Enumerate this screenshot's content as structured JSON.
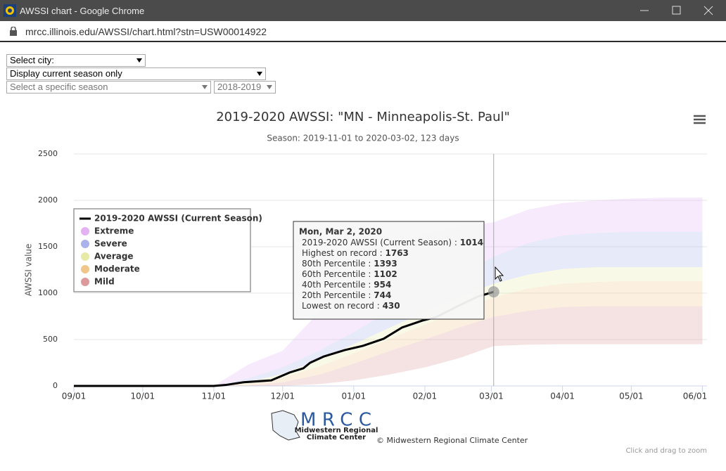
{
  "window": {
    "title": "AWSSI chart - Google Chrome",
    "url": "mrcc.illinois.edu/AWSSI/chart.html?stn=USW00014922"
  },
  "controls": {
    "city": "Select city:",
    "season_mode": "Display current season only",
    "season": "Select a specific season",
    "year": "2018-2019"
  },
  "chart_data": {
    "type": "line",
    "title": "2019-2020 AWSSI: \"MN - Minneapolis-St. Paul\"",
    "subtitle": "Season: 2019-11-01 to 2020-03-02, 123 days",
    "y_label": "AWSSI value",
    "xlim": [
      0,
      276
    ],
    "xticks": [
      {
        "value": 0,
        "label": "09/01"
      },
      {
        "value": 30,
        "label": "10/01"
      },
      {
        "value": 61,
        "label": "11/01"
      },
      {
        "value": 91,
        "label": "12/01"
      },
      {
        "value": 122,
        "label": "01/01"
      },
      {
        "value": 153,
        "label": "02/01"
      },
      {
        "value": 182,
        "label": "03/01"
      },
      {
        "value": 213,
        "label": "04/01"
      },
      {
        "value": 243,
        "label": "05/01"
      },
      {
        "value": 274,
        "label": "06/01"
      }
    ],
    "ylim": [
      0,
      2500
    ],
    "yticks": [
      0,
      500,
      1000,
      1500,
      2000,
      2500
    ],
    "grid": true,
    "legend": "left",
    "series": [
      {
        "name": "2019-2020 AWSSI (Current Season)",
        "color": "#000000",
        "x": [
          0,
          61,
          66,
          74,
          86,
          94,
          100,
          103,
          109,
          118,
          126,
          135,
          143,
          152,
          158,
          167,
          176,
          183
        ],
        "values": [
          0,
          0,
          10,
          40,
          60,
          144,
          190,
          250,
          318,
          386,
          432,
          508,
          629,
          705,
          742,
          856,
          962,
          1014
        ]
      }
    ],
    "percentile_x": [
      61,
      76,
      91,
      107,
      122,
      137,
      153,
      168,
      183,
      198,
      213,
      228,
      243,
      259,
      274
    ],
    "percentiles": [
      {
        "values": [
          0,
          230,
          380,
          800,
          1100,
          1400,
          1650,
          1720,
          1763,
          1900,
          1970,
          2000,
          2020,
          2030,
          2030
        ]
      },
      {
        "values": [
          0,
          80,
          200,
          380,
          580,
          800,
          1000,
          1200,
          1393,
          1540,
          1620,
          1650,
          1660,
          1660,
          1660
        ]
      },
      {
        "values": [
          0,
          40,
          130,
          280,
          450,
          620,
          800,
          960,
          1102,
          1200,
          1260,
          1280,
          1280,
          1280,
          1280
        ]
      },
      {
        "values": [
          0,
          20,
          90,
          210,
          350,
          500,
          660,
          810,
          954,
          1050,
          1100,
          1120,
          1130,
          1130,
          1130
        ]
      },
      {
        "values": [
          0,
          5,
          40,
          120,
          240,
          370,
          500,
          630,
          744,
          810,
          850,
          860,
          860,
          860,
          860
        ]
      },
      {
        "values": [
          0,
          0,
          0,
          20,
          60,
          120,
          200,
          300,
          430,
          445,
          450,
          450,
          450,
          450,
          450
        ]
      }
    ],
    "bands": [
      {
        "name": "Extreme",
        "color": "#e4b2f3"
      },
      {
        "name": "Severe",
        "color": "#a9b2ea"
      },
      {
        "name": "Average",
        "color": "#e6eaa6"
      },
      {
        "name": "Moderate",
        "color": "#f1c68b"
      },
      {
        "name": "Mild",
        "color": "#dc9a9a"
      }
    ],
    "tooltip": {
      "date": "Mon, Mar 2, 2020",
      "separator": " : ",
      "rows": [
        {
          "label": "2019-2020 AWSSI (Current Season)",
          "value": 1014
        },
        {
          "label": "Highest on record",
          "value": 1763
        },
        {
          "label": "80th Percentile",
          "value": 1393
        },
        {
          "label": "60th Percentile",
          "value": 1102
        },
        {
          "label": "40th Percentile",
          "value": 954
        },
        {
          "label": "20th Percentile",
          "value": 744
        },
        {
          "label": "Lowest on record",
          "value": 430
        }
      ]
    },
    "credit": "© Midwestern Regional Climate Center",
    "zoom_hint": "Click and drag to zoom"
  },
  "logo": {
    "name": "MRCC",
    "line1": "Midwestern Regional",
    "line2": "Climate Center"
  }
}
